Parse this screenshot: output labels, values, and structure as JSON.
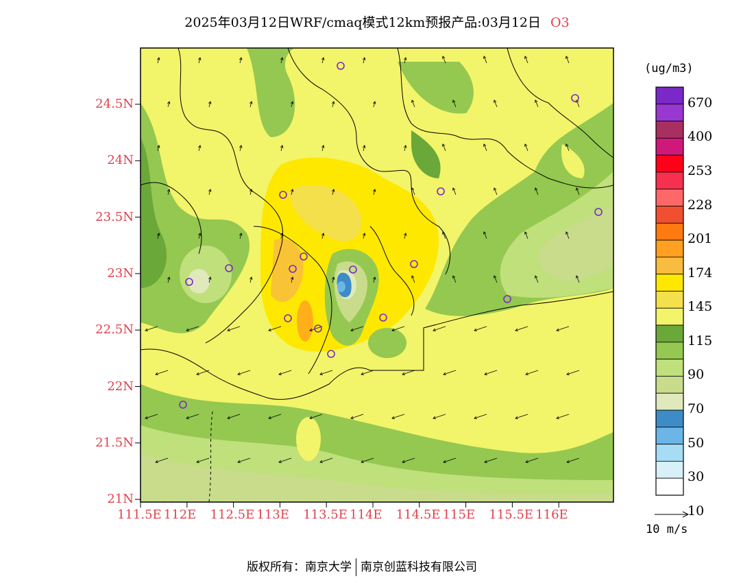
{
  "header": {
    "title": "2025年03月12日WRF/cmaq模式12km预报产品:03月12日",
    "species": "O3"
  },
  "map": {
    "lat_ticks": [
      "24.5N",
      "24N",
      "23.5N",
      "23N",
      "22.5N",
      "22N",
      "21.5N",
      "21N"
    ],
    "lon_ticks": [
      "111.5E",
      "112E",
      "112.5E",
      "113E",
      "113.5E",
      "114E",
      "114.5E",
      "115E",
      "115.5E",
      "116E"
    ],
    "stations_note": "monitoring stations shown as purple circles"
  },
  "colorbar": {
    "units": "(ug/m3)",
    "colors": [
      "#ffffff",
      "#d8f0f8",
      "#a6dcf4",
      "#6bb6e6",
      "#3d8cc8",
      "#dfe9bc",
      "#c8dc8c",
      "#bfe07a",
      "#94c850",
      "#6aa83a",
      "#f2f46a",
      "#f4e04a",
      "#ffe800",
      "#f8bc40",
      "#ffa020",
      "#ff7a10",
      "#f05030",
      "#ff6868",
      "#f83050",
      "#ff0018",
      "#d0187a",
      "#a83060",
      "#9838d0",
      "#7a28c8"
    ],
    "labels": [
      "10",
      "30",
      "50",
      "70",
      "90",
      "115",
      "145",
      "174",
      "201",
      "228",
      "253",
      "400",
      "670"
    ],
    "wind_ref_label": "10 m/s"
  },
  "footer": {
    "left": "版权所有：南京大学",
    "right": "南京创蓝科技有限公司"
  }
}
